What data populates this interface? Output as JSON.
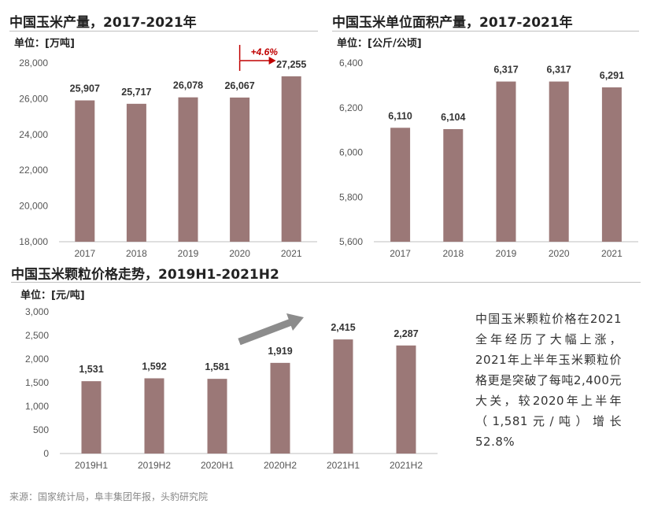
{
  "charts": [
    {
      "title": "中国玉米产量，2017-2021年",
      "unit": "单位：[万吨]",
      "chart_data": {
        "type": "bar",
        "categories": [
          "2017",
          "2018",
          "2019",
          "2020",
          "2021"
        ],
        "values": [
          25907,
          25717,
          26078,
          26067,
          27255
        ],
        "value_labels": [
          "25,907",
          "25,717",
          "26,078",
          "26,067",
          "27,255"
        ],
        "ylim": [
          18000,
          28000
        ],
        "yticks": [
          18000,
          20000,
          22000,
          24000,
          26000,
          28000
        ],
        "ytick_labels": [
          "18,000",
          "20,000",
          "22,000",
          "24,000",
          "26,000",
          "28,000"
        ],
        "annotation": "+4.6%",
        "bar_color": "#9b7877",
        "annotation_color": "#c00000"
      }
    },
    {
      "title": "中国玉米单位面积产量，2017-2021年",
      "unit": "单位：[公斤/公顷]",
      "chart_data": {
        "type": "bar",
        "categories": [
          "2017",
          "2018",
          "2019",
          "2020",
          "2021"
        ],
        "values": [
          6110,
          6104,
          6317,
          6317,
          6291
        ],
        "value_labels": [
          "6,110",
          "6,104",
          "6,317",
          "6,317",
          "6,291"
        ],
        "ylim": [
          5600,
          6400
        ],
        "yticks": [
          5600,
          5800,
          6000,
          6200,
          6400
        ],
        "ytick_labels": [
          "5,600",
          "5,800",
          "6,000",
          "6,200",
          "6,400"
        ],
        "bar_color": "#9b7877"
      }
    },
    {
      "title": "中国玉米颗粒价格走势，2019H1-2021H2",
      "unit": "单位：[元/吨]",
      "chart_data": {
        "type": "bar",
        "categories": [
          "2019H1",
          "2019H2",
          "2020H1",
          "2020H2",
          "2021H1",
          "2021H2"
        ],
        "values": [
          1531,
          1592,
          1581,
          1919,
          2415,
          2287
        ],
        "value_labels": [
          "1,531",
          "1,592",
          "1,581",
          "1,919",
          "2,415",
          "2,287"
        ],
        "ylim": [
          0,
          3000
        ],
        "yticks": [
          0,
          500,
          1000,
          1500,
          2000,
          2500,
          3000
        ],
        "ytick_labels": [
          "0",
          "500",
          "1,000",
          "1,500",
          "2,000",
          "2,500",
          "3,000"
        ],
        "bar_color": "#9b7877",
        "trend_arrow_color": "#8c8c8c"
      }
    }
  ],
  "summary": "中国玉米颗粒价格在2021全年经历了大幅上涨，2021年上半年玉米颗粒价格更是突破了每吨2,400元大关，较2020年上半年（1,581元/吨）增长52.8%",
  "source": "来源：国家统计局，阜丰集团年报，头豹研究院"
}
